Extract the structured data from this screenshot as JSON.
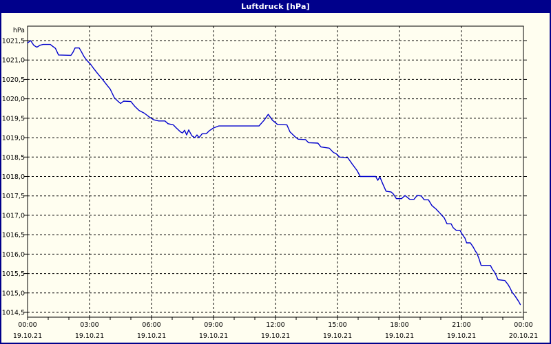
{
  "window": {
    "title": "Luftdruck [hPa]"
  },
  "colors": {
    "titlebar_bg": "#00008B",
    "titlebar_text": "#FFFFFF",
    "window_border": "#00008B",
    "page_bg": "#FFFEF0",
    "grid": "#000000",
    "axis_text": "#000000",
    "line": "#0000CC"
  },
  "chart_data": {
    "type": "line",
    "title": "Luftdruck [hPa]",
    "ylabel": "hPa",
    "xlabel": "",
    "ylim": [
      1014.5,
      1021.5
    ],
    "xlim_hours": [
      0,
      24
    ],
    "grid": "dashed",
    "legend": "none",
    "line_color": "#0000CC",
    "y_ticks": [
      {
        "value": 1021.5,
        "label": "1021,5"
      },
      {
        "value": 1021.0,
        "label": "1021,0"
      },
      {
        "value": 1020.5,
        "label": "1020,5"
      },
      {
        "value": 1020.0,
        "label": "1020,0"
      },
      {
        "value": 1019.5,
        "label": "1019,5"
      },
      {
        "value": 1019.0,
        "label": "1019,0"
      },
      {
        "value": 1018.5,
        "label": "1018,5"
      },
      {
        "value": 1018.0,
        "label": "1018,0"
      },
      {
        "value": 1017.5,
        "label": "1017,5"
      },
      {
        "value": 1017.0,
        "label": "1017,0"
      },
      {
        "value": 1016.5,
        "label": "1016,5"
      },
      {
        "value": 1016.0,
        "label": "1016,0"
      },
      {
        "value": 1015.5,
        "label": "1015,5"
      },
      {
        "value": 1015.0,
        "label": "1015,0"
      },
      {
        "value": 1014.5,
        "label": "1014,5"
      }
    ],
    "x_ticks": [
      {
        "hour": 0,
        "time": "00:00",
        "date": "19.10.21"
      },
      {
        "hour": 3,
        "time": "03:00",
        "date": "19.10.21"
      },
      {
        "hour": 6,
        "time": "06:00",
        "date": "19.10.21"
      },
      {
        "hour": 9,
        "time": "09:00",
        "date": "19.10.21"
      },
      {
        "hour": 12,
        "time": "12:00",
        "date": "19.10.21"
      },
      {
        "hour": 15,
        "time": "15:00",
        "date": "19.10.21"
      },
      {
        "hour": 18,
        "time": "18:00",
        "date": "19.10.21"
      },
      {
        "hour": 21,
        "time": "21:00",
        "date": "19.10.21"
      },
      {
        "hour": 24,
        "time": "00:00",
        "date": "20.10.21"
      }
    ],
    "minor_x_tick_every_hours": 1,
    "series": [
      {
        "name": "Luftdruck",
        "unit": "hPa",
        "points": [
          [
            0.0,
            1021.44
          ],
          [
            0.15,
            1021.5
          ],
          [
            0.3,
            1021.38
          ],
          [
            0.45,
            1021.33
          ],
          [
            0.6,
            1021.38
          ],
          [
            0.75,
            1021.4
          ],
          [
            1.1,
            1021.4
          ],
          [
            1.2,
            1021.36
          ],
          [
            1.35,
            1021.3
          ],
          [
            1.5,
            1021.13
          ],
          [
            2.1,
            1021.12
          ],
          [
            2.2,
            1021.2
          ],
          [
            2.3,
            1021.31
          ],
          [
            2.5,
            1021.31
          ],
          [
            2.6,
            1021.22
          ],
          [
            2.72,
            1021.1
          ],
          [
            2.85,
            1021.0
          ],
          [
            3.05,
            1020.89
          ],
          [
            3.2,
            1020.78
          ],
          [
            3.35,
            1020.68
          ],
          [
            3.55,
            1020.55
          ],
          [
            3.7,
            1020.45
          ],
          [
            3.85,
            1020.35
          ],
          [
            4.0,
            1020.25
          ],
          [
            4.2,
            1020.03
          ],
          [
            4.35,
            1019.95
          ],
          [
            4.5,
            1019.88
          ],
          [
            4.65,
            1019.94
          ],
          [
            5.0,
            1019.93
          ],
          [
            5.2,
            1019.8
          ],
          [
            5.4,
            1019.7
          ],
          [
            5.65,
            1019.63
          ],
          [
            5.9,
            1019.53
          ],
          [
            6.1,
            1019.46
          ],
          [
            6.35,
            1019.43
          ],
          [
            6.65,
            1019.43
          ],
          [
            6.8,
            1019.36
          ],
          [
            7.05,
            1019.33
          ],
          [
            7.2,
            1019.25
          ],
          [
            7.4,
            1019.15
          ],
          [
            7.5,
            1019.12
          ],
          [
            7.6,
            1019.19
          ],
          [
            7.7,
            1019.07
          ],
          [
            7.8,
            1019.2
          ],
          [
            7.95,
            1019.05
          ],
          [
            8.1,
            1019.0
          ],
          [
            8.2,
            1019.07
          ],
          [
            8.3,
            1019.0
          ],
          [
            8.45,
            1019.1
          ],
          [
            8.65,
            1019.1
          ],
          [
            8.8,
            1019.18
          ],
          [
            9.0,
            1019.25
          ],
          [
            9.25,
            1019.3
          ],
          [
            11.2,
            1019.3
          ],
          [
            11.45,
            1019.45
          ],
          [
            11.65,
            1019.6
          ],
          [
            11.85,
            1019.45
          ],
          [
            12.1,
            1019.34
          ],
          [
            12.55,
            1019.33
          ],
          [
            12.7,
            1019.15
          ],
          [
            12.95,
            1019.02
          ],
          [
            13.1,
            1018.96
          ],
          [
            13.45,
            1018.95
          ],
          [
            13.6,
            1018.87
          ],
          [
            14.05,
            1018.86
          ],
          [
            14.2,
            1018.76
          ],
          [
            14.6,
            1018.73
          ],
          [
            14.8,
            1018.62
          ],
          [
            14.95,
            1018.58
          ],
          [
            15.1,
            1018.5
          ],
          [
            15.5,
            1018.48
          ],
          [
            15.7,
            1018.33
          ],
          [
            15.95,
            1018.15
          ],
          [
            16.1,
            1018.0
          ],
          [
            16.85,
            1018.0
          ],
          [
            16.95,
            1017.9
          ],
          [
            17.05,
            1017.99
          ],
          [
            17.2,
            1017.8
          ],
          [
            17.35,
            1017.62
          ],
          [
            17.6,
            1017.6
          ],
          [
            17.7,
            1017.55
          ],
          [
            17.85,
            1017.43
          ],
          [
            18.1,
            1017.43
          ],
          [
            18.27,
            1017.51
          ],
          [
            18.5,
            1017.41
          ],
          [
            18.7,
            1017.41
          ],
          [
            18.85,
            1017.51
          ],
          [
            19.05,
            1017.5
          ],
          [
            19.2,
            1017.4
          ],
          [
            19.4,
            1017.4
          ],
          [
            19.57,
            1017.25
          ],
          [
            19.77,
            1017.16
          ],
          [
            20.0,
            1017.03
          ],
          [
            20.17,
            1016.93
          ],
          [
            20.3,
            1016.78
          ],
          [
            20.5,
            1016.78
          ],
          [
            20.6,
            1016.68
          ],
          [
            20.75,
            1016.61
          ],
          [
            20.93,
            1016.61
          ],
          [
            21.05,
            1016.5
          ],
          [
            21.17,
            1016.41
          ],
          [
            21.25,
            1016.29
          ],
          [
            21.43,
            1016.29
          ],
          [
            21.57,
            1016.18
          ],
          [
            21.67,
            1016.08
          ],
          [
            21.75,
            1016.02
          ],
          [
            21.85,
            1015.88
          ],
          [
            21.95,
            1015.71
          ],
          [
            22.4,
            1015.71
          ],
          [
            22.5,
            1015.61
          ],
          [
            22.62,
            1015.52
          ],
          [
            22.77,
            1015.34
          ],
          [
            23.1,
            1015.32
          ],
          [
            23.25,
            1015.22
          ],
          [
            23.35,
            1015.13
          ],
          [
            23.45,
            1015.02
          ],
          [
            23.57,
            1014.94
          ],
          [
            23.67,
            1014.86
          ],
          [
            23.77,
            1014.78
          ],
          [
            23.85,
            1014.7
          ]
        ]
      }
    ]
  }
}
